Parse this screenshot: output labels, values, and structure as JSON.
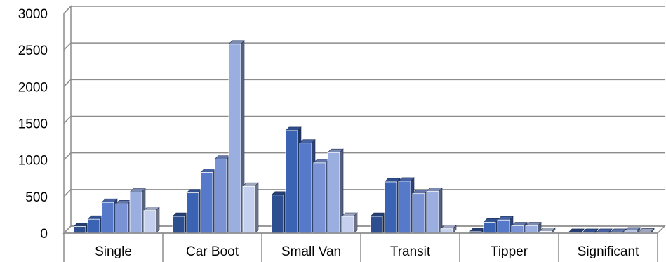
{
  "chart_data": {
    "type": "bar",
    "style": "3d-clustered-column",
    "title": "",
    "xlabel": "",
    "ylabel": "",
    "ylim": [
      0,
      3000
    ],
    "yticks": [
      0,
      500,
      1000,
      1500,
      2000,
      2500,
      3000
    ],
    "grid": true,
    "legend": "none",
    "categories": [
      "Single",
      "Car Boot",
      "Small Van",
      "Transit",
      "Tipper",
      "Significant"
    ],
    "series_colors": [
      "#2E4F8F",
      "#3B63B3",
      "#5679C9",
      "#7A93D4",
      "#9AAEDF",
      "#C5D0EE"
    ],
    "series": [
      {
        "values": [
          90,
          230,
          520,
          230,
          20,
          10
        ]
      },
      {
        "values": [
          190,
          550,
          1400,
          700,
          150,
          10
        ]
      },
      {
        "values": [
          420,
          830,
          1230,
          710,
          180,
          10
        ]
      },
      {
        "values": [
          400,
          1010,
          960,
          540,
          100,
          10
        ]
      },
      {
        "values": [
          560,
          2580,
          1100,
          570,
          100,
          30
        ]
      },
      {
        "values": [
          310,
          640,
          230,
          60,
          25,
          15
        ]
      }
    ]
  }
}
